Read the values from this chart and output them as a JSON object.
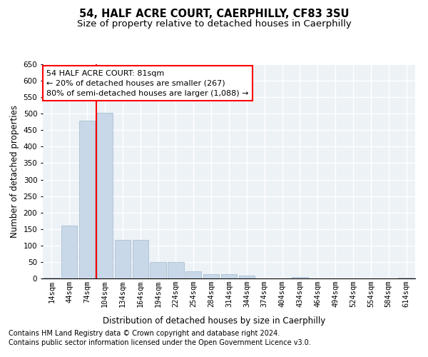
{
  "title": "54, HALF ACRE COURT, CAERPHILLY, CF83 3SU",
  "subtitle": "Size of property relative to detached houses in Caerphilly",
  "xlabel": "Distribution of detached houses by size in Caerphilly",
  "ylabel": "Number of detached properties",
  "categories": [
    "14sqm",
    "44sqm",
    "74sqm",
    "104sqm",
    "134sqm",
    "164sqm",
    "194sqm",
    "224sqm",
    "254sqm",
    "284sqm",
    "314sqm",
    "344sqm",
    "374sqm",
    "404sqm",
    "434sqm",
    "464sqm",
    "494sqm",
    "524sqm",
    "554sqm",
    "584sqm",
    "614sqm"
  ],
  "values": [
    3,
    160,
    478,
    503,
    118,
    118,
    50,
    50,
    22,
    12,
    12,
    8,
    0,
    0,
    5,
    0,
    0,
    0,
    0,
    0,
    3
  ],
  "bar_color": "#c8d8e8",
  "bar_edgecolor": "#a0b8cc",
  "redline_x": 2.5,
  "ylim": [
    0,
    650
  ],
  "yticks": [
    0,
    50,
    100,
    150,
    200,
    250,
    300,
    350,
    400,
    450,
    500,
    550,
    600,
    650
  ],
  "annotation_text": "54 HALF ACRE COURT: 81sqm\n← 20% of detached houses are smaller (267)\n80% of semi-detached houses are larger (1,088) →",
  "annotation_box_color": "white",
  "annotation_box_edgecolor": "red",
  "footnote1": "Contains HM Land Registry data © Crown copyright and database right 2024.",
  "footnote2": "Contains public sector information licensed under the Open Government Licence v3.0.",
  "background_color": "#edf2f7",
  "grid_color": "white",
  "title_fontsize": 10.5,
  "subtitle_fontsize": 9.5,
  "axis_label_fontsize": 8.5,
  "tick_fontsize": 7.5,
  "annotation_fontsize": 8,
  "footnote_fontsize": 7
}
